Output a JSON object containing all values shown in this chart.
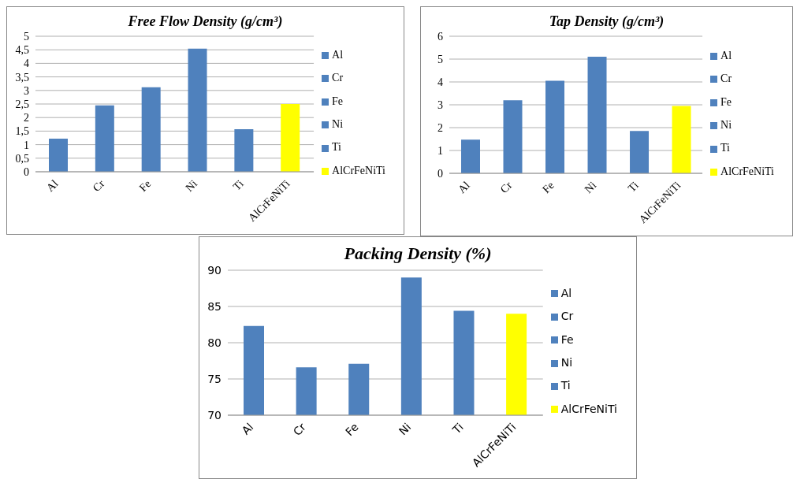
{
  "chart_data": [
    {
      "type": "bar",
      "title": "Free Flow Density (g/cm³)",
      "categories": [
        "Al",
        "Cr",
        "Fe",
        "Ni",
        "Ti",
        "AlCrFeNiTi"
      ],
      "stacked": true,
      "series": [
        {
          "name": "Al",
          "color": "#4f81bd",
          "values": [
            1.22,
            null,
            null,
            null,
            null,
            null
          ]
        },
        {
          "name": "Cr",
          "color": "#4f81bd",
          "values": [
            null,
            2.45,
            null,
            null,
            null,
            null
          ]
        },
        {
          "name": "Fe",
          "color": "#4f81bd",
          "values": [
            null,
            null,
            3.12,
            null,
            null,
            null
          ]
        },
        {
          "name": "Ni",
          "color": "#4f81bd",
          "values": [
            null,
            null,
            null,
            4.54,
            null,
            null
          ]
        },
        {
          "name": "Ti",
          "color": "#4f81bd",
          "values": [
            null,
            null,
            null,
            null,
            1.57,
            null
          ]
        },
        {
          "name": "AlCrFeNiTi",
          "color": "#ffff00",
          "values": [
            null,
            null,
            null,
            null,
            null,
            2.5
          ]
        }
      ],
      "ylim": [
        0,
        5
      ],
      "yticks": [
        0,
        {
          "value": 0.5,
          "label": "0,5"
        },
        1,
        {
          "value": 1.5,
          "label": "1,5"
        },
        2,
        {
          "value": 2.5,
          "label": "2,5"
        },
        3,
        {
          "value": 3.5,
          "label": "3,5"
        },
        4,
        {
          "value": 4.5,
          "label": "4,5"
        },
        5
      ],
      "grid": "y",
      "legend": "right"
    },
    {
      "type": "bar",
      "title": "Tap Density (g/cm³)",
      "categories": [
        "Al",
        "Cr",
        "Fe",
        "Ni",
        "Ti",
        "AlCrFeNiTi"
      ],
      "stacked": true,
      "series": [
        {
          "name": "Al",
          "color": "#4f81bd",
          "values": [
            1.47,
            null,
            null,
            null,
            null,
            null
          ]
        },
        {
          "name": "Cr",
          "color": "#4f81bd",
          "values": [
            null,
            3.2,
            null,
            null,
            null,
            null
          ]
        },
        {
          "name": "Fe",
          "color": "#4f81bd",
          "values": [
            null,
            null,
            4.05,
            null,
            null,
            null
          ]
        },
        {
          "name": "Ni",
          "color": "#4f81bd",
          "values": [
            null,
            null,
            null,
            5.1,
            null,
            null
          ]
        },
        {
          "name": "Ti",
          "color": "#4f81bd",
          "values": [
            null,
            null,
            null,
            null,
            1.85,
            null
          ]
        },
        {
          "name": "AlCrFeNiTi",
          "color": "#ffff00",
          "values": [
            null,
            null,
            null,
            null,
            null,
            2.95
          ]
        }
      ],
      "ylim": [
        0,
        6
      ],
      "yticks": [
        0,
        1,
        2,
        3,
        4,
        5,
        6
      ],
      "grid": "y",
      "legend": "right"
    },
    {
      "type": "bar",
      "title": "Packing Density (%)",
      "categories": [
        "Al",
        "Cr",
        "Fe",
        "Ni",
        "Ti",
        "AlCrFeNiTi"
      ],
      "stacked": true,
      "series": [
        {
          "name": "Al",
          "color": "#4f81bd",
          "values": [
            82.3,
            null,
            null,
            null,
            null,
            null
          ]
        },
        {
          "name": "Cr",
          "color": "#4f81bd",
          "values": [
            null,
            76.6,
            null,
            null,
            null,
            null
          ]
        },
        {
          "name": "Fe",
          "color": "#4f81bd",
          "values": [
            null,
            null,
            77.1,
            null,
            null,
            null
          ]
        },
        {
          "name": "Ni",
          "color": "#4f81bd",
          "values": [
            null,
            null,
            null,
            89.0,
            null,
            null
          ]
        },
        {
          "name": "Ti",
          "color": "#4f81bd",
          "values": [
            null,
            null,
            null,
            null,
            84.4,
            null
          ]
        },
        {
          "name": "AlCrFeNiTi",
          "color": "#ffff00",
          "values": [
            null,
            null,
            null,
            null,
            null,
            84.0
          ]
        }
      ],
      "ylim": [
        70,
        90
      ],
      "yticks": [
        70,
        75,
        80,
        85,
        90
      ],
      "grid": "y",
      "legend": "right"
    }
  ]
}
